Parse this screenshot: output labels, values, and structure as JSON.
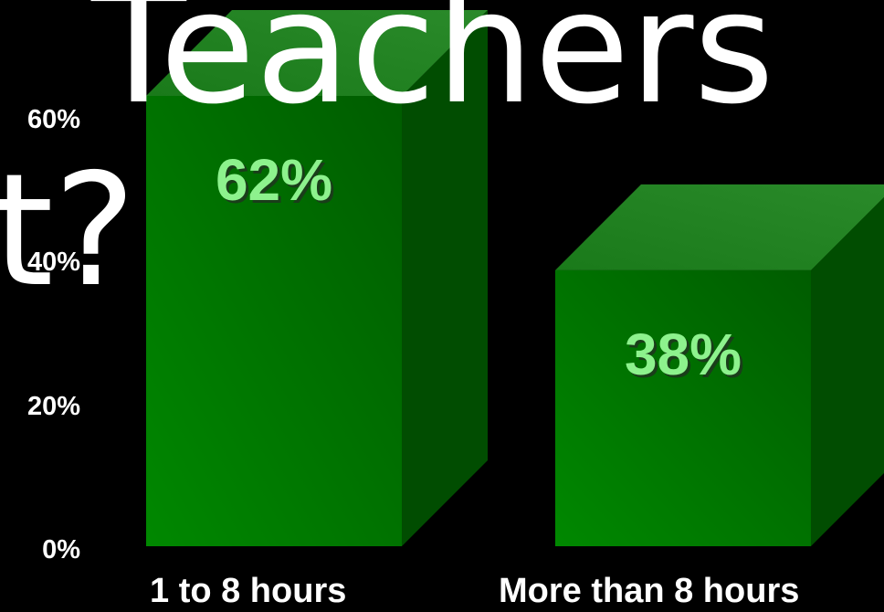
{
  "title_line1": "Teachers",
  "title_line2": "t?",
  "chart_data": {
    "type": "bar",
    "categories": [
      "1 to 8 hours",
      "More than 8 hours"
    ],
    "values": [
      62,
      38
    ],
    "data_labels": [
      "62%",
      "38%"
    ],
    "y_ticks": [
      "0%",
      "20%",
      "40%",
      "60%"
    ],
    "ylim": [
      0,
      62
    ],
    "style": "3d",
    "colors": {
      "front": "#006e00",
      "top": "#1e7e1e",
      "side": "#014d01",
      "label": "#8df28d",
      "text": "#ffffff",
      "background": "#000000"
    }
  }
}
